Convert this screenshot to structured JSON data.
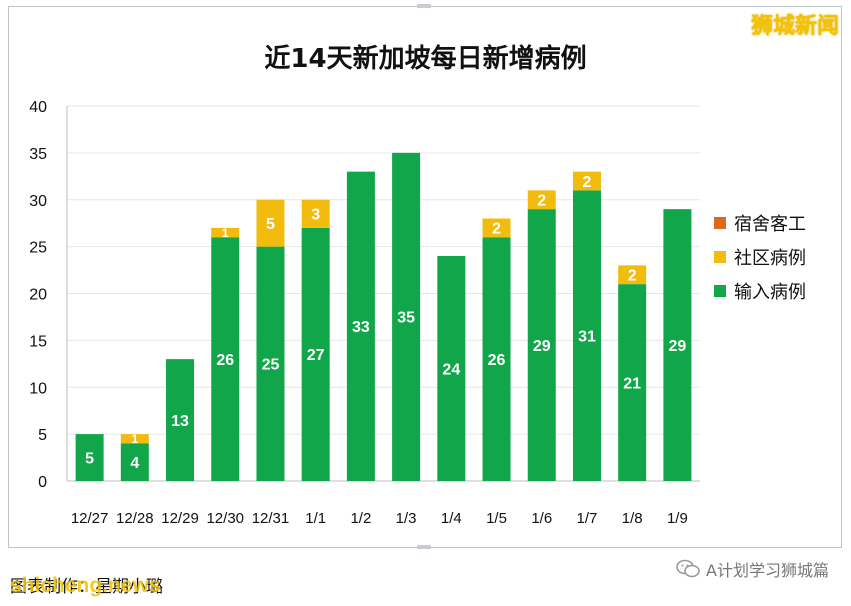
{
  "brand": "狮城新闻",
  "credit": "图表制作：星期小璐",
  "source_brand": "shicheng.news",
  "wechat": {
    "label": "A计划学习狮城篇"
  },
  "colors": {
    "dorm": "#d9691e",
    "community": "#f2bc0f",
    "imported": "#12a64a",
    "grid": "#e6e6e6",
    "axis": "#bfbfbf",
    "value_label": "#ffffff"
  },
  "legend": [
    {
      "label": "宿舍客工",
      "color": "#d9691e"
    },
    {
      "label": "社区病例",
      "color": "#f2bc0f"
    },
    {
      "label": "输入病例",
      "color": "#12a64a"
    }
  ],
  "chart_data": {
    "type": "bar",
    "stacked": true,
    "title": "近14天新加坡每日新增病例",
    "categories": [
      "12/27",
      "12/28",
      "12/29",
      "12/30",
      "12/31",
      "1/1",
      "1/2",
      "1/3",
      "1/4",
      "1/5",
      "1/6",
      "1/7",
      "1/8",
      "1/9"
    ],
    "series": [
      {
        "name": "输入病例",
        "values": [
          5,
          4,
          13,
          26,
          25,
          27,
          33,
          35,
          24,
          26,
          29,
          31,
          21,
          29
        ]
      },
      {
        "name": "社区病例",
        "values": [
          0,
          1,
          0,
          1,
          5,
          3,
          0,
          0,
          0,
          2,
          2,
          2,
          2,
          0
        ]
      },
      {
        "name": "宿舍客工",
        "values": [
          0,
          0,
          0,
          0,
          0,
          0,
          0,
          0,
          0,
          0,
          0,
          0,
          0,
          0
        ]
      }
    ],
    "y_ticks": [
      0,
      5,
      10,
      15,
      20,
      25,
      30,
      35,
      40
    ],
    "ylim": [
      0,
      40
    ],
    "grid": true,
    "legend_position": "right"
  }
}
